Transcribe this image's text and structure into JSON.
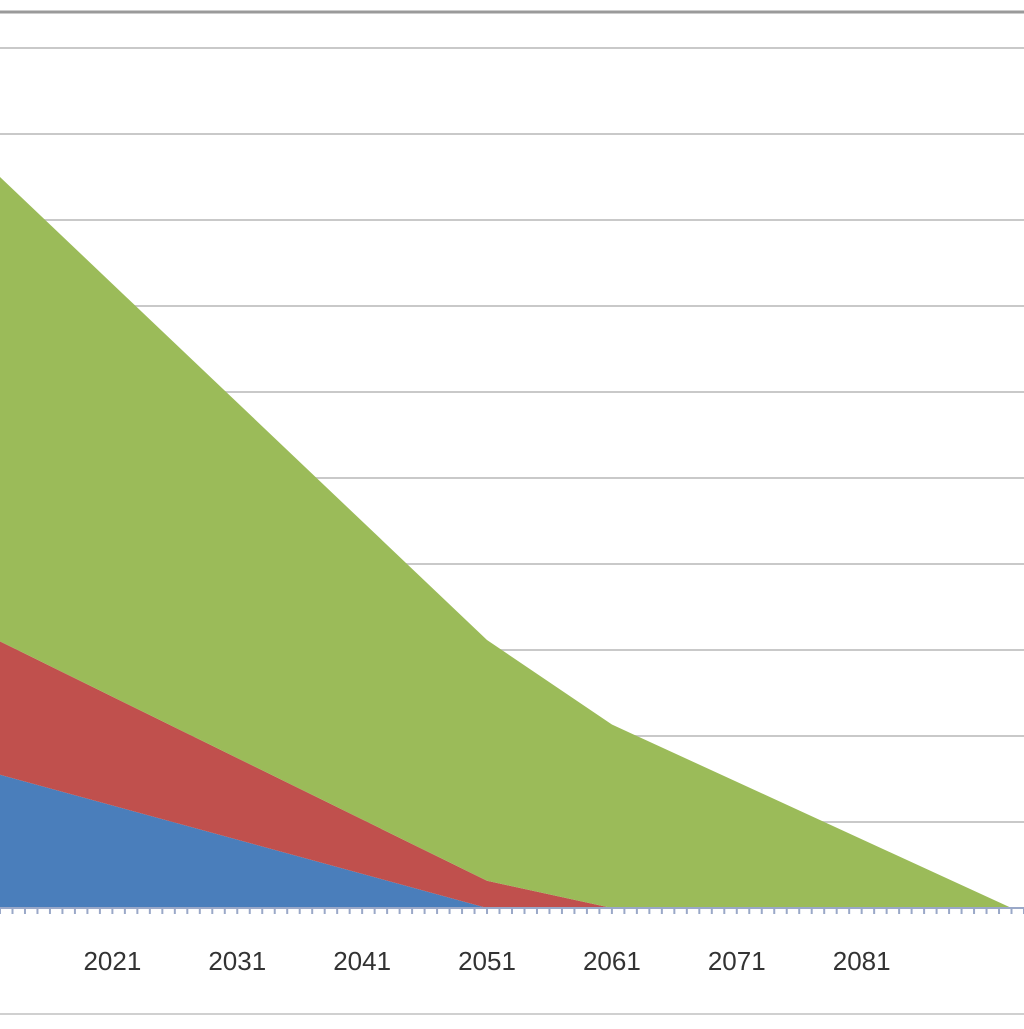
{
  "chart_data": {
    "type": "area",
    "stacked": true,
    "title": "",
    "xlabel": "",
    "ylabel": "",
    "x_tick_labels": [
      "2021",
      "2031",
      "2041",
      "2051",
      "2061",
      "2071",
      "2081"
    ],
    "x_range": [
      2012,
      2094
    ],
    "y_range": [
      0,
      10
    ],
    "grid": true,
    "legend": "none",
    "series": [
      {
        "color": "#4a7ebb",
        "x": [
          2012,
          2051
        ],
        "values": [
          1.55,
          0
        ]
      },
      {
        "color": "#c0504d",
        "x": [
          2012,
          2061
        ],
        "values": [
          1.55,
          0
        ]
      },
      {
        "color": "#9bbb59",
        "x": [
          2012,
          2093
        ],
        "values": [
          5.4,
          0
        ]
      }
    ]
  }
}
